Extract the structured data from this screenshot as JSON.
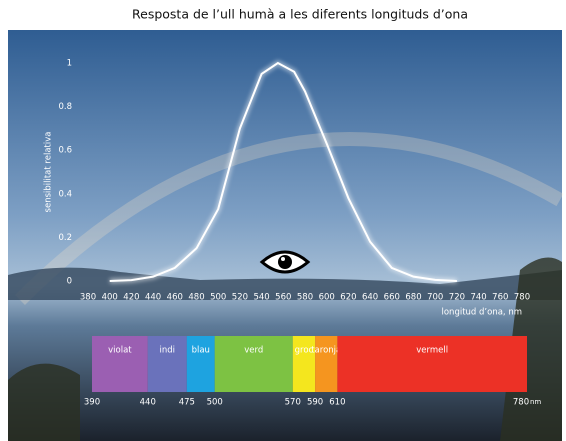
{
  "chart_data": [
    {
      "type": "line",
      "title": "Resposta de l’ull humà a les diferents longituds d’ona",
      "x_label": "longitud d’ona, nm",
      "y_label": "sensibilitat relativa",
      "x": [
        400,
        420,
        440,
        460,
        480,
        500,
        520,
        540,
        555,
        570,
        580,
        600,
        620,
        640,
        660,
        680,
        700,
        720
      ],
      "values": [
        0,
        0.004,
        0.02,
        0.06,
        0.15,
        0.33,
        0.7,
        0.95,
        1,
        0.96,
        0.87,
        0.63,
        0.38,
        0.18,
        0.06,
        0.02,
        0.005,
        0
      ],
      "color": "#ffffff",
      "xlim": [
        380,
        780
      ],
      "ylim": [
        0,
        1
      ],
      "xticks": [
        380,
        400,
        420,
        440,
        460,
        480,
        500,
        520,
        540,
        560,
        580,
        600,
        620,
        640,
        660,
        680,
        700,
        720,
        740,
        760,
        780
      ],
      "yticks": [
        0,
        0.2,
        0.4,
        0.6,
        0.8,
        1
      ],
      "grid": false
    },
    {
      "type": "spectrum",
      "categories": [
        "violat",
        "indi",
        "blau",
        "verd",
        "groc",
        "taronja",
        "vermell"
      ],
      "colors": [
        "#9b5fb2",
        "#6a72bb",
        "#1ea3e0",
        "#7dc243",
        "#f4e61e",
        "#f5951f",
        "#ec3126"
      ],
      "edges": [
        390,
        440,
        475,
        500,
        570,
        590,
        610,
        780
      ],
      "unit": "nm",
      "xlim": [
        390,
        780
      ]
    }
  ]
}
